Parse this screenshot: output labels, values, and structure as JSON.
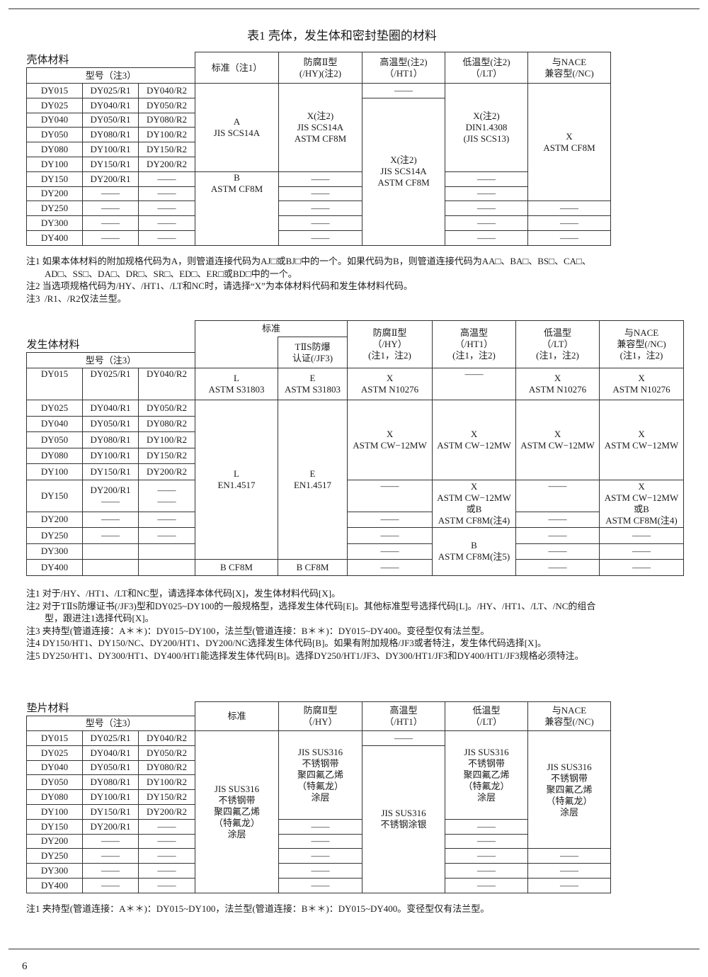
{
  "title": "表1 壳体，发生体和密封垫圈的材料",
  "dash": "——",
  "t1": {
    "section": "壳体材料",
    "model_header": "型号（注3）",
    "headers": [
      "标准（注1）",
      "防腐Ⅱ型\n(/HY)(注2)",
      "高温型(注2)\n（/HT1）",
      "低温型(注2)\n（/LT）",
      "与NACE\n兼容型(/NC)"
    ],
    "models": [
      [
        "DY015",
        "DY025/R1",
        "DY040/R2"
      ],
      [
        "DY025",
        "DY040/R1",
        "DY050/R2"
      ],
      [
        "DY040",
        "DY050/R1",
        "DY080/R2"
      ],
      [
        "DY050",
        "DY080/R1",
        "DY100/R2"
      ],
      [
        "DY080",
        "DY100/R1",
        "DY150/R2"
      ],
      [
        "DY100",
        "DY150/R1",
        "DY200/R2"
      ],
      [
        "DY150",
        "DY200/R1",
        "——"
      ],
      [
        "DY200",
        "——",
        "——"
      ],
      [
        "DY250",
        "——",
        "——"
      ],
      [
        "DY300",
        "——",
        "——"
      ],
      [
        "DY400",
        "——",
        "——"
      ]
    ],
    "std_a": "A\nJIS SCS14A",
    "std_b": "B\nASTM CF8M",
    "hy": "X(注2)\nJIS SCS14A\nASTM CF8M",
    "ht1": "X(注2)\nJIS SCS14A\nASTM CF8M",
    "lt": "X(注2)\nDIN1.4308\n(JIS SCS13)",
    "nc": "X\nASTM CF8M",
    "notes": [
      "注1 如果本体材料的附加规格代码为A，则管道连接代码为AJ□或BJ□中的一个。如果代码为B，则管道连接代码为AA□、BA□、BS□、CA□、",
      "AD□、SS□、DA□、DR□、SR□、ED□、ER□或BD□中的一个。",
      "注2 当选项规格代码为/HY、/HT1、/LT和NC时，请选择“X”为本体材料代码和发生体材料代码。",
      "注3  /R1、/R2仅法兰型。"
    ]
  },
  "t2": {
    "section": "发生体材料",
    "model_header": "型号（注3）",
    "std_header": "标准",
    "jf3_header": "TⅡS防爆\n认证(/JF3)",
    "headers": [
      "防腐Ⅱ型\n（/HY）\n(注1，注2)",
      "高温型\n（/HT1）\n(注1，注2)",
      "低温型\n（/LT）\n(注1，注2)",
      "与NACE\n兼容型(/NC)\n(注1，注2)"
    ],
    "models": [
      [
        "DY015",
        "DY025/R1",
        "DY040/R2"
      ],
      [
        "DY025",
        "DY040/R1",
        "DY050/R2"
      ],
      [
        "DY040",
        "DY050/R1",
        "DY080/R2"
      ],
      [
        "DY050",
        "DY080/R1",
        "DY100/R2"
      ],
      [
        "DY080",
        "DY100/R1",
        "DY150/R2"
      ],
      [
        "DY100",
        "DY150/R1",
        "DY200/R2"
      ],
      [
        "DY150",
        "DY200/R1\n——",
        "——\n——"
      ],
      [
        "DY200",
        "——",
        "——"
      ],
      [
        "DY250",
        "——",
        "——"
      ],
      [
        "DY300",
        "",
        ""
      ],
      [
        "DY400",
        "",
        ""
      ]
    ],
    "l_s31803": "L\nASTM S31803",
    "e_s31803": "E\nASTM S31803",
    "x_n10276": "X\nASTM N10276",
    "l_en": "L\nEN1.4517",
    "e_en": "E\nEN1.4517",
    "x_cw": "X\nASTM CW−12MW",
    "b_cf8m": "B CF8M",
    "x_cw_or_b": "X\nASTM CW−12MW\n或B\nASTM CF8M(注4)",
    "b_cf8m_n5": "B\nASTM CF8M(注5)",
    "notes": [
      "注1 对于/HY、/HT1、/LT和NC型，请选择本体代码[X]，发生体材料代码[X]。",
      "注2 对于TⅡS防爆证书(/JF3)型和DY025~DY100的一般规格型，选择发生体代码[E]。其他标准型号选择代码[L]。/HY、/HT1、/LT、/NC的组合",
      "型，跟进注1选择代码[X]。",
      "注3 夹持型(管道连接：A＊＊)：DY015~DY100，法兰型(管道连接：B＊＊)：DY015~DY400。变径型仅有法兰型。",
      "注4 DY150/HT1、DY150/NC、DY200/HT1、DY200/NC选择发生体代码[B]。如果有附加规格/JF3或者特注，发生体代码选择[X]。",
      "注5 DY250/HT1、DY300/HT1、DY400/HT1能选择发生体代码[B]。选择DY250/HT1/JF3、DY300/HT1/JF3和DY400/HT1/JF3规格必须特注。"
    ]
  },
  "t3": {
    "section": "垫片材料",
    "model_header": "型号（注3）",
    "headers": [
      "标准",
      "防腐Ⅱ型\n（/HY）",
      "高温型\n（/HT1）",
      "低温型\n（/LT）",
      "与NACE\n兼容型(/NC)"
    ],
    "models": [
      [
        "DY015",
        "DY025/R1",
        "DY040/R2"
      ],
      [
        "DY025",
        "DY040/R1",
        "DY050/R2"
      ],
      [
        "DY040",
        "DY050/R1",
        "DY080/R2"
      ],
      [
        "DY050",
        "DY080/R1",
        "DY100/R2"
      ],
      [
        "DY080",
        "DY100/R1",
        "DY150/R2"
      ],
      [
        "DY100",
        "DY150/R1",
        "DY200/R2"
      ],
      [
        "DY150",
        "DY200/R1",
        "——"
      ],
      [
        "DY200",
        "——",
        "——"
      ],
      [
        "DY250",
        "——",
        "——"
      ],
      [
        "DY300",
        "——",
        "——"
      ],
      [
        "DY400",
        "——",
        "——"
      ]
    ],
    "ptfe": "JIS SUS316\n不锈钢带\n聚四氟乙烯\n（特氟龙）\n涂层",
    "silver": "JIS SUS316\n不锈钢涂银",
    "notes": [
      "注1 夹持型(管道连接：A＊＊)：DY015~DY100，法兰型(管道连接：B＊＊)：DY015~DY400。变径型仅有法兰型。"
    ]
  },
  "page_number": "6"
}
